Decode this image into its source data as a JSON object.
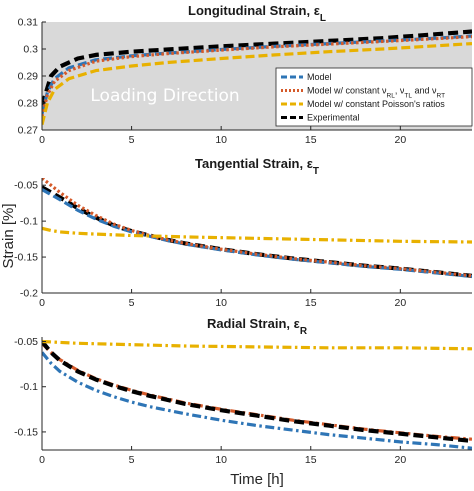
{
  "chart_data": {
    "type": "line",
    "xlabel": "Time [h]",
    "ylabel": "Strain [%]",
    "x_ticks": [
      "0",
      "5",
      "10",
      "15",
      "20"
    ],
    "legend": {
      "placement": "lower-right of top panel",
      "entries": [
        {
          "name": "Model",
          "color": "#2e75b6",
          "dash": "dashed",
          "text": "Model"
        },
        {
          "name": "Model w/ constant νRL, νTL and νRT",
          "color": "#d55a2a",
          "dash": "dotted",
          "text": "Model w/ constant ν",
          "segments": [
            {
              "t": "Model w/ constant ν",
              "s": false
            },
            {
              "t": "RL",
              "s": true
            },
            {
              "t": ", ν",
              "s": false
            },
            {
              "t": "TL",
              "s": true
            },
            {
              "t": " and ν",
              "s": false
            },
            {
              "t": "RT",
              "s": true
            }
          ]
        },
        {
          "name": "Model w/ constant Poisson's ratios",
          "color": "#e8b100",
          "dash": "dashed",
          "text": "Model w/ constant Poisson's ratios"
        },
        {
          "name": "Experimental",
          "color": "#000000",
          "dash": "dashed",
          "text": "Experimental"
        }
      ]
    },
    "panels": [
      {
        "title": "Longitudinal Strain, ε",
        "title_sub": "L",
        "xlim": [
          0,
          24
        ],
        "ylim": [
          0.27,
          0.31
        ],
        "y_ticks": [
          "0.27",
          "0.28",
          "0.29",
          "0.3",
          "0.31"
        ],
        "y_tick_values": [
          0.27,
          0.28,
          0.29,
          0.3,
          0.31
        ],
        "background": "#d9d9d9",
        "annotation": "Loading Direction",
        "series": [
          {
            "name": "Experimental",
            "color": "#000000",
            "style": "dash-bold",
            "x": [
              0,
              0.5,
              1,
              2,
              3,
              5,
              7,
              10,
              13,
              16,
              19,
              22,
              24
            ],
            "y": [
              0.279,
              0.29,
              0.2935,
              0.2965,
              0.2978,
              0.299,
              0.2998,
              0.301,
              0.302,
              0.303,
              0.304,
              0.3055,
              0.3065
            ]
          },
          {
            "name": "Model",
            "color": "#2e75b6",
            "style": "dash",
            "x": [
              0,
              0.3,
              0.7,
              1.5,
              3,
              5,
              7,
              10,
              13,
              16,
              19,
              22,
              24
            ],
            "y": [
              0.276,
              0.284,
              0.289,
              0.293,
              0.296,
              0.2975,
              0.2985,
              0.2998,
              0.301,
              0.302,
              0.303,
              0.304,
              0.3048
            ]
          },
          {
            "name": "Model w/ constant νRL, νTL and νRT",
            "color": "#d55a2a",
            "style": "dot",
            "x": [
              0,
              0.3,
              0.7,
              1.5,
              3,
              5,
              7,
              10,
              13,
              16,
              19,
              22,
              24
            ],
            "y": [
              0.275,
              0.283,
              0.288,
              0.292,
              0.2955,
              0.2972,
              0.2983,
              0.2996,
              0.3008,
              0.3018,
              0.3028,
              0.3038,
              0.3046
            ]
          },
          {
            "name": "Model w/ constant Poisson's ratios",
            "color": "#e8b100",
            "style": "dash",
            "x": [
              0,
              0.3,
              0.7,
              1.5,
              3,
              5,
              7,
              10,
              13,
              16,
              19,
              22,
              24
            ],
            "y": [
              0.272,
              0.28,
              0.285,
              0.289,
              0.292,
              0.2937,
              0.295,
              0.2965,
              0.2978,
              0.299,
              0.3,
              0.3012,
              0.302
            ]
          }
        ]
      },
      {
        "title": "Tangential Strain, ε",
        "title_sub": "T",
        "xlim": [
          0,
          24
        ],
        "ylim": [
          -0.2,
          -0.04
        ],
        "y_ticks": [
          "-0.05",
          "-0.1",
          "-0.15",
          "-0.2"
        ],
        "y_tick_values": [
          -0.05,
          -0.1,
          -0.15,
          -0.2
        ],
        "background": "#ffffff",
        "annotation": "",
        "series": [
          {
            "name": "Experimental",
            "color": "#000000",
            "style": "dash-bold",
            "x": [
              0,
              1,
              2,
              3,
              4,
              5,
              6,
              7,
              8,
              10,
              12,
              14,
              16,
              18,
              20,
              22,
              24
            ],
            "y": [
              -0.053,
              -0.067,
              -0.082,
              -0.095,
              -0.106,
              -0.114,
              -0.12,
              -0.126,
              -0.131,
              -0.139,
              -0.146,
              -0.152,
              -0.157,
              -0.162,
              -0.166,
              -0.171,
              -0.176
            ]
          },
          {
            "name": "Model",
            "color": "#2e75b6",
            "style": "dash",
            "x": [
              0,
              1,
              2,
              3,
              4,
              5,
              6,
              7,
              8,
              10,
              12,
              14,
              16,
              18,
              20,
              22,
              24
            ],
            "y": [
              -0.056,
              -0.07,
              -0.085,
              -0.097,
              -0.107,
              -0.115,
              -0.121,
              -0.127,
              -0.132,
              -0.14,
              -0.147,
              -0.153,
              -0.158,
              -0.163,
              -0.167,
              -0.172,
              -0.177
            ]
          },
          {
            "name": "Model w/ constant νRL, νTL and νRT",
            "color": "#d55a2a",
            "style": "dot",
            "x": [
              0,
              1,
              2,
              3,
              4,
              5,
              6,
              7,
              8,
              10,
              12,
              14,
              16,
              18,
              20,
              22,
              24
            ],
            "y": [
              -0.04,
              -0.06,
              -0.078,
              -0.092,
              -0.104,
              -0.113,
              -0.12,
              -0.126,
              -0.131,
              -0.139,
              -0.146,
              -0.152,
              -0.157,
              -0.162,
              -0.166,
              -0.171,
              -0.176
            ]
          },
          {
            "name": "Model w/ constant Poisson's ratios",
            "color": "#e8b100",
            "style": "dashdot",
            "x": [
              0,
              0.5,
              1,
              2,
              3,
              5,
              8,
              12,
              16,
              20,
              24
            ],
            "y": [
              -0.11,
              -0.113,
              -0.115,
              -0.117,
              -0.118,
              -0.12,
              -0.122,
              -0.124,
              -0.126,
              -0.128,
              -0.129
            ]
          }
        ]
      },
      {
        "title": "Radial Strain, ε",
        "title_sub": "R",
        "xlim": [
          0,
          24
        ],
        "ylim": [
          -0.17,
          -0.045
        ],
        "y_ticks": [
          "-0.05",
          "-0.1",
          "-0.15"
        ],
        "y_tick_values": [
          -0.05,
          -0.1,
          -0.15
        ],
        "background": "#ffffff",
        "annotation": "",
        "series": [
          {
            "name": "Model",
            "color": "#2e75b6",
            "style": "dashdot",
            "x": [
              0,
              0.5,
              1,
              2,
              3,
              4,
              5,
              6,
              8,
              10,
              12,
              14,
              16,
              18,
              20,
              22,
              24
            ],
            "y": [
              -0.062,
              -0.074,
              -0.083,
              -0.095,
              -0.104,
              -0.111,
              -0.117,
              -0.122,
              -0.13,
              -0.137,
              -0.143,
              -0.148,
              -0.153,
              -0.157,
              -0.161,
              -0.164,
              -0.168
            ]
          },
          {
            "name": "Model w/ constant νRL, νTL and νRT",
            "color": "#d55a2a",
            "style": "dashdot",
            "x": [
              0,
              0.5,
              1,
              2,
              3,
              4,
              5,
              6,
              8,
              10,
              12,
              14,
              16,
              18,
              20,
              22,
              24
            ],
            "y": [
              -0.052,
              -0.062,
              -0.07,
              -0.082,
              -0.091,
              -0.098,
              -0.104,
              -0.109,
              -0.118,
              -0.125,
              -0.131,
              -0.137,
              -0.142,
              -0.147,
              -0.151,
              -0.155,
              -0.158
            ]
          },
          {
            "name": "Experimental",
            "color": "#000000",
            "style": "dash-bold",
            "x": [
              0,
              0.5,
              1,
              2,
              3,
              4,
              5,
              6,
              8,
              10,
              12,
              14,
              16,
              18,
              20,
              22,
              24
            ],
            "y": [
              -0.05,
              -0.062,
              -0.071,
              -0.083,
              -0.092,
              -0.099,
              -0.105,
              -0.11,
              -0.119,
              -0.126,
              -0.132,
              -0.138,
              -0.143,
              -0.148,
              -0.152,
              -0.156,
              -0.16
            ]
          },
          {
            "name": "Model w/ constant Poisson's ratios",
            "color": "#e8b100",
            "style": "dashdot",
            "x": [
              0,
              1,
              2,
              4,
              6,
              8,
              12,
              16,
              20,
              24
            ],
            "y": [
              -0.05,
              -0.051,
              -0.052,
              -0.053,
              -0.054,
              -0.055,
              -0.056,
              -0.057,
              -0.057,
              -0.058
            ]
          }
        ]
      }
    ]
  }
}
